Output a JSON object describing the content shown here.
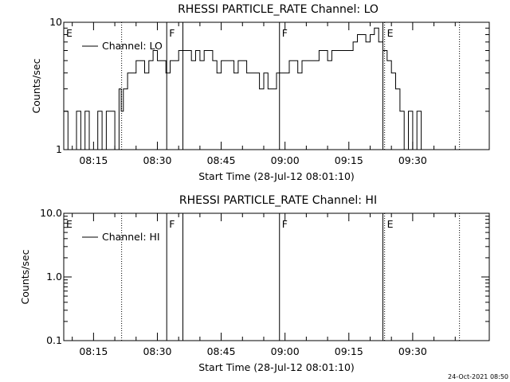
{
  "chart_data": [
    {
      "type": "line",
      "title": "RHESSI PARTICLE_RATE Channel: LO",
      "xlabel": "Start Time (28-Jul-12 08:01:10)",
      "ylabel": "Counts/sec",
      "yscale": "log",
      "ylim": [
        1,
        10
      ],
      "yticks": [
        "10",
        "1"
      ],
      "xlim_minutes": [
        8.0,
        108.0
      ],
      "xticks": [
        {
          "label": "08:15",
          "m": 15
        },
        {
          "label": "08:30",
          "m": 30
        },
        {
          "label": "08:45",
          "m": 45
        },
        {
          "label": "09:00",
          "m": 60
        },
        {
          "label": "09:15",
          "m": 75
        },
        {
          "label": "09:30",
          "m": 90
        }
      ],
      "legend": {
        "label": "Channel: LO",
        "position": "top-left"
      },
      "markers": [
        {
          "label": "E",
          "m": 8.0,
          "style": "none"
        },
        {
          "label": "",
          "m": 21.6,
          "style": "dotted"
        },
        {
          "label": "F",
          "m": 32.2,
          "style": "solid"
        },
        {
          "label": "",
          "m": 36.0,
          "style": "solid"
        },
        {
          "label": "F",
          "m": 58.7,
          "style": "solid"
        },
        {
          "label": "",
          "m": 83.0,
          "style": "solid"
        },
        {
          "label": "E",
          "m": 83.4,
          "style": "dotted"
        },
        {
          "label": "",
          "m": 101.0,
          "style": "dotted"
        }
      ],
      "series": [
        {
          "name": "Channel: LO",
          "x": [
            8,
            9,
            10,
            11,
            12,
            13,
            14,
            15,
            16,
            17,
            18,
            19,
            20,
            21,
            21.5,
            22,
            23,
            24,
            25,
            26,
            27,
            28,
            29,
            30,
            31,
            32,
            33,
            34,
            35,
            36,
            37,
            38,
            39,
            40,
            41,
            42,
            43,
            44,
            45,
            46,
            47,
            48,
            49,
            50,
            51,
            52,
            53,
            54,
            55,
            56,
            57,
            58,
            59,
            60,
            61,
            62,
            63,
            64,
            65,
            66,
            67,
            68,
            69,
            70,
            71,
            72,
            73,
            74,
            75,
            76,
            77,
            78,
            79,
            80,
            81,
            82,
            83,
            84,
            85,
            86,
            87,
            88,
            89,
            90,
            91,
            92,
            93,
            94,
            95,
            96,
            97,
            98,
            99,
            100,
            101,
            102,
            103,
            104,
            105,
            106,
            107,
            108
          ],
          "y": [
            2,
            1,
            1,
            2,
            1,
            2,
            1,
            1,
            2,
            1,
            2,
            2,
            1,
            3,
            2,
            3,
            4,
            4,
            5,
            5,
            4,
            5,
            6,
            5,
            5,
            4,
            5,
            5,
            6,
            6,
            6,
            5,
            6,
            5,
            6,
            6,
            5,
            4,
            5,
            5,
            5,
            4,
            5,
            5,
            4,
            4,
            4,
            3,
            4,
            3,
            3,
            4,
            4,
            4,
            5,
            5,
            4,
            5,
            5,
            5,
            5,
            6,
            6,
            5,
            6,
            6,
            6,
            6,
            6,
            7,
            8,
            8,
            7,
            8,
            9,
            7,
            6,
            5,
            4,
            3,
            2,
            1,
            2,
            1,
            2,
            1,
            1,
            1,
            1,
            1,
            1,
            1,
            1,
            1,
            1,
            1,
            1,
            1,
            1,
            1,
            1,
            1
          ]
        }
      ]
    },
    {
      "type": "line",
      "title": "RHESSI PARTICLE_RATE Channel: HI",
      "xlabel": "Start Time (28-Jul-12 08:01:10)",
      "ylabel": "Counts/sec",
      "yscale": "log",
      "ylim": [
        0.1,
        10
      ],
      "yticks": [
        "10.0",
        "1.0",
        "0.1"
      ],
      "xlim_minutes": [
        8.0,
        108.0
      ],
      "xticks": [
        {
          "label": "08:15",
          "m": 15
        },
        {
          "label": "08:30",
          "m": 30
        },
        {
          "label": "08:45",
          "m": 45
        },
        {
          "label": "09:00",
          "m": 60
        },
        {
          "label": "09:15",
          "m": 75
        },
        {
          "label": "09:30",
          "m": 90
        }
      ],
      "legend": {
        "label": "Channel: HI",
        "position": "top-left"
      },
      "markers": [
        {
          "label": "E",
          "m": 8.0,
          "style": "none"
        },
        {
          "label": "",
          "m": 21.6,
          "style": "dotted"
        },
        {
          "label": "F",
          "m": 32.2,
          "style": "solid"
        },
        {
          "label": "",
          "m": 36.0,
          "style": "solid"
        },
        {
          "label": "F",
          "m": 58.7,
          "style": "solid"
        },
        {
          "label": "",
          "m": 83.0,
          "style": "solid"
        },
        {
          "label": "E",
          "m": 83.4,
          "style": "dotted"
        },
        {
          "label": "",
          "m": 101.0,
          "style": "dotted"
        }
      ],
      "series": [
        {
          "name": "Channel: HI",
          "x": [],
          "y": []
        }
      ]
    }
  ],
  "footer": {
    "timestamp": "24-Oct-2021 08:50"
  }
}
